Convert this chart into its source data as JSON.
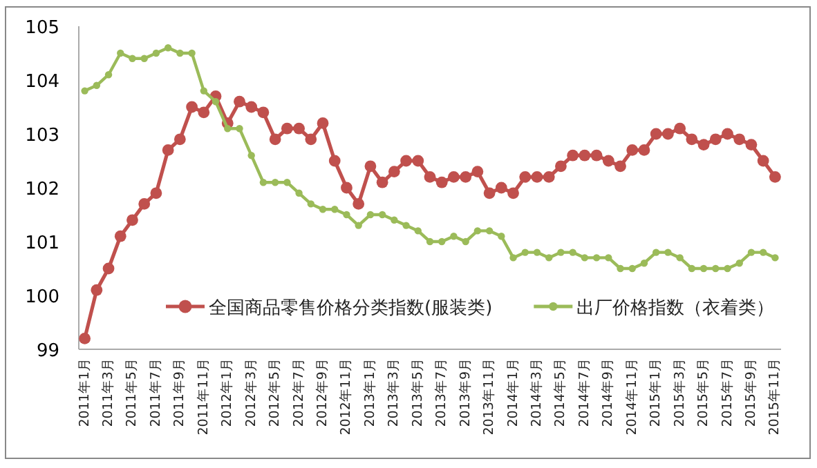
{
  "chart_data": {
    "type": "line",
    "categories": [
      "2011年1月",
      null,
      "2011年3月",
      null,
      "2011年5月",
      null,
      "2011年7月",
      null,
      "2011年9月",
      null,
      "2011年11月",
      null,
      "2012年1月",
      null,
      "2012年3月",
      null,
      "2012年5月",
      null,
      "2012年7月",
      null,
      "2012年9月",
      null,
      "2012年11月",
      null,
      "2013年1月",
      null,
      "2013年3月",
      null,
      "2013年5月",
      null,
      "2013年7月",
      null,
      "2013年9月",
      null,
      "2013年11月",
      null,
      "2014年1月",
      null,
      "2014年3月",
      null,
      "2014年5月",
      null,
      "2014年7月",
      null,
      "2014年9月",
      null,
      "2014年11月",
      null,
      "2015年1月",
      null,
      "2015年3月",
      null,
      "2015年5月",
      null,
      "2015年7月",
      null,
      "2015年9月",
      null,
      "2015年11月"
    ],
    "series": [
      {
        "name": "全国商品零售价格分类指数(服装类)",
        "color": "#c0504d",
        "marker": "circle",
        "values": [
          99.2,
          100.1,
          100.5,
          101.1,
          101.4,
          101.7,
          101.9,
          102.7,
          102.9,
          103.5,
          103.4,
          103.7,
          103.2,
          103.6,
          103.5,
          103.4,
          102.9,
          103.1,
          103.1,
          102.9,
          103.2,
          102.5,
          102.0,
          101.7,
          102.4,
          102.1,
          102.3,
          102.5,
          102.5,
          102.2,
          102.1,
          102.2,
          102.2,
          102.3,
          101.9,
          102.0,
          101.9,
          102.2,
          102.2,
          102.2,
          102.4,
          102.6,
          102.6,
          102.6,
          102.5,
          102.4,
          102.7,
          102.7,
          103.0,
          103.0,
          103.1,
          102.9,
          102.8,
          102.9,
          103.0,
          102.9,
          102.8,
          102.5,
          102.2
        ]
      },
      {
        "name": "出厂价格指数（衣着类）",
        "color": "#9bbb59",
        "marker": "circle",
        "values": [
          103.8,
          103.9,
          104.1,
          104.5,
          104.4,
          104.4,
          104.5,
          104.6,
          104.5,
          104.5,
          103.8,
          103.6,
          103.1,
          103.1,
          102.6,
          102.1,
          102.1,
          102.1,
          101.9,
          101.7,
          101.6,
          101.6,
          101.5,
          101.3,
          101.5,
          101.5,
          101.4,
          101.3,
          101.2,
          101.0,
          101.0,
          101.1,
          101.0,
          101.2,
          101.2,
          101.1,
          100.7,
          100.8,
          100.8,
          100.7,
          100.8,
          100.8,
          100.7,
          100.7,
          100.7,
          100.5,
          100.5,
          100.6,
          100.8,
          100.8,
          100.7,
          100.5,
          100.5,
          100.5,
          100.5,
          100.6,
          100.8,
          100.8,
          100.7
        ]
      }
    ],
    "ylim": [
      99,
      105
    ],
    "yticks": [
      99,
      100,
      101,
      102,
      103,
      104,
      105
    ],
    "grid": false,
    "legend": "bottom",
    "line_style": "solid"
  }
}
